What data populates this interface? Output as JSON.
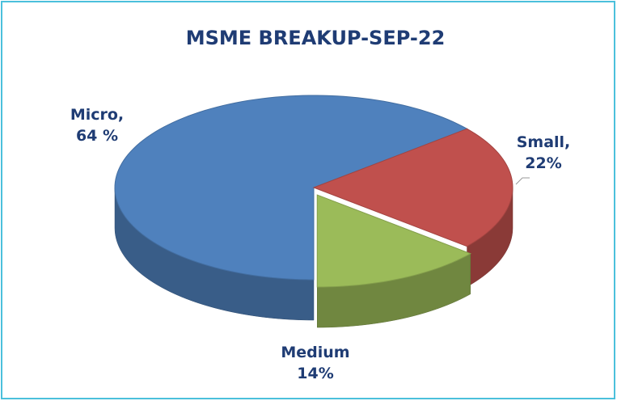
{
  "chart_data": {
    "type": "pie",
    "title": "MSME BREAKUP-SEP-22",
    "categories": [
      "Micro,",
      "Small,",
      "Medium"
    ],
    "values": [
      64,
      22,
      14
    ],
    "value_labels": [
      "64 %",
      "22%",
      "14%"
    ],
    "colors": [
      "#4f81bd",
      "#c0504d",
      "#9bbb59"
    ]
  }
}
